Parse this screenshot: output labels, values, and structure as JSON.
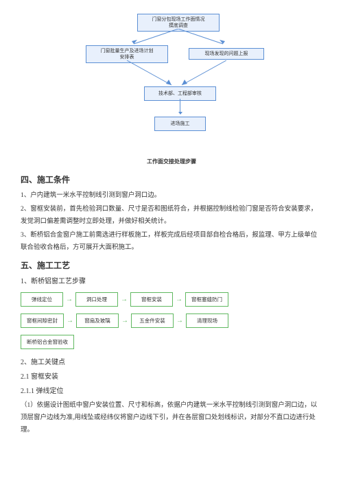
{
  "flowchart": {
    "box1": "门窗分包现场工作面情况\n摸底调查",
    "box2": "门窗批量生产及进场计划\n安排表",
    "box3": "现场发现的问题上报",
    "box4": "技术部、工程部审核",
    "box5": "进场施工",
    "caption": "工作面交接处理步骤"
  },
  "section4": {
    "title": "四、施工条件",
    "p1": "1、户内建筑一米水平控制线引测到窗户洞口边。",
    "p2": "2、窗框安装前，首先检验洞口数量、尺寸是否和图纸符合，并根据控制线检验门窗是否符合安装要求，发觉洞口偏差需调整时立即处理，并做好相关统计。",
    "p3": "3、断桥铝合金窗户施工前需选进行样板施工，样板完成后经项目部自检合格后，报监理、甲方上级单位联合验收合格后，方可展开大面积施工。"
  },
  "section5": {
    "title": "五、施工工艺",
    "sub1": "1、断桥铝窗工艺步骤",
    "process": {
      "row1": [
        "弹线定位",
        "洞口处理",
        "窗框安装",
        "窗框塞缝防门"
      ],
      "row2": [
        "窗框间隙密封",
        "窗扇及玻璃",
        "五金件安装",
        "清理现场"
      ],
      "row3": [
        "断桥铝合金窗验收"
      ]
    },
    "sub2": "2、施工关键点",
    "sub21": "2.1  窗框安装",
    "sub211": "2.1.1  弹线定位",
    "p211": "（1）依据设计图纸中窗户安装位置、尺寸和标高，依据户内建筑一米水平控制线引测到窗户洞口边，以顶层窗户边线为准,用线坠或经纬仪将窗户边线下引，并在各层窗口处划线标识，对部分不直口边进行处理。"
  },
  "colors": {
    "flowbox_bg": "#e8f0fc",
    "flowbox_border": "#5b8fd4",
    "process_border": "#5fb85f",
    "text": "#333333"
  }
}
